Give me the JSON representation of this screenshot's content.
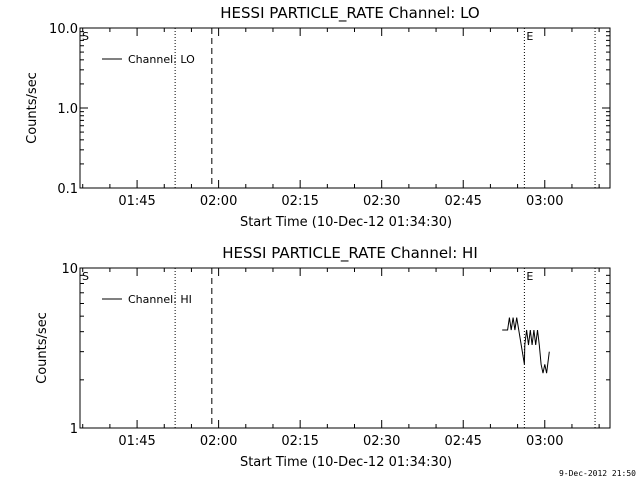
{
  "page": {
    "timestamp": "9-Dec-2012 21:50"
  },
  "chart_data": [
    {
      "type": "line",
      "title": "HESSI PARTICLE_RATE Channel: LO",
      "xlabel": "Start Time (10-Dec-12 01:34:30)",
      "ylabel": "Counts/sec",
      "y_scale": "log",
      "ylim": [
        0.1,
        10.0
      ],
      "xlim": [
        "01:34:30",
        "03:12:00"
      ],
      "x_ticks": [
        "01:45",
        "02:00",
        "02:15",
        "02:30",
        "02:45",
        "03:00"
      ],
      "y_ticks": [
        "10.0",
        "1.0",
        "0.1"
      ],
      "grid": false,
      "legend": "top-left",
      "series": [
        {
          "name": "Channel: LO",
          "x": [],
          "y": []
        }
      ],
      "markers": [
        {
          "time": "01:34:30",
          "style": "solid",
          "label": "S"
        },
        {
          "time": "01:52:00",
          "style": "dotted",
          "label": ""
        },
        {
          "time": "01:58:45",
          "style": "dashed",
          "label": ""
        },
        {
          "time": "02:56:15",
          "style": "dotted",
          "label": "E"
        },
        {
          "time": "03:09:15",
          "style": "dotted",
          "label": ""
        }
      ]
    },
    {
      "type": "line",
      "title": "HESSI PARTICLE_RATE Channel: HI",
      "xlabel": "Start Time (10-Dec-12 01:34:30)",
      "ylabel": "Counts/sec",
      "y_scale": "log",
      "ylim": [
        1,
        10
      ],
      "xlim": [
        "01:34:30",
        "03:12:00"
      ],
      "x_ticks": [
        "01:45",
        "02:00",
        "02:15",
        "02:30",
        "02:45",
        "03:00"
      ],
      "y_ticks": [
        "10",
        "1"
      ],
      "grid": false,
      "legend": "top-left",
      "series": [
        {
          "name": "Channel: HI",
          "x": [
            "02:52:10",
            "02:53:10",
            "02:53:30",
            "02:53:50",
            "02:54:10",
            "02:54:30",
            "02:54:50",
            "02:56:15",
            "02:56:20",
            "02:56:40",
            "02:57:00",
            "02:57:20",
            "02:57:40",
            "02:58:00",
            "02:58:20",
            "02:58:40",
            "02:59:00",
            "02:59:20",
            "02:59:40",
            "03:00:00",
            "03:00:20",
            "03:00:50"
          ],
          "y": [
            4.1,
            4.1,
            4.9,
            4.1,
            4.9,
            4.1,
            4.9,
            2.5,
            3.3,
            4.1,
            3.3,
            4.1,
            3.3,
            4.1,
            3.3,
            4.1,
            3.3,
            2.5,
            2.2,
            2.5,
            2.2,
            3.0
          ]
        }
      ],
      "markers": [
        {
          "time": "01:34:30",
          "style": "solid",
          "label": "S"
        },
        {
          "time": "01:52:00",
          "style": "dotted",
          "label": ""
        },
        {
          "time": "01:58:45",
          "style": "dashed",
          "label": ""
        },
        {
          "time": "02:56:15",
          "style": "dotted",
          "label": "E"
        },
        {
          "time": "03:09:15",
          "style": "dotted",
          "label": ""
        }
      ]
    }
  ]
}
